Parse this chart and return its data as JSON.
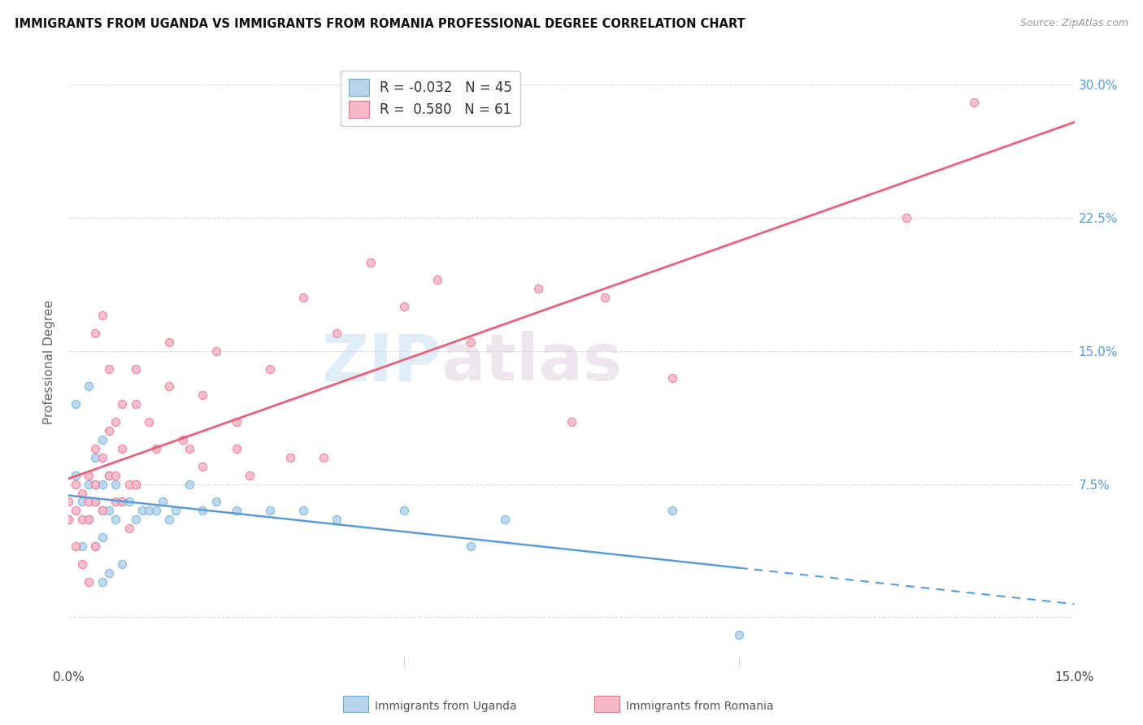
{
  "title": "IMMIGRANTS FROM UGANDA VS IMMIGRANTS FROM ROMANIA PROFESSIONAL DEGREE CORRELATION CHART",
  "source": "Source: ZipAtlas.com",
  "ylabel": "Professional Degree",
  "ytick_labels": [
    "",
    "7.5%",
    "15.0%",
    "22.5%",
    "30.0%"
  ],
  "ytick_values": [
    0.0,
    0.075,
    0.15,
    0.225,
    0.3
  ],
  "xmin": 0.0,
  "xmax": 0.15,
  "ymin": -0.028,
  "ymax": 0.315,
  "watermark": "ZIPatlas",
  "uganda_color": "#b8d4ed",
  "romania_color": "#f7b8c8",
  "uganda_edge_color": "#6aaed6",
  "romania_edge_color": "#e87090",
  "uganda_line_color": "#5b9bd5",
  "romania_line_color": "#e8607a",
  "uganda_R": -0.032,
  "uganda_N": 45,
  "romania_R": 0.58,
  "romania_N": 61,
  "uganda_points_x": [
    0.0,
    0.001,
    0.001,
    0.002,
    0.002,
    0.003,
    0.003,
    0.003,
    0.004,
    0.004,
    0.004,
    0.004,
    0.005,
    0.005,
    0.005,
    0.005,
    0.005,
    0.006,
    0.006,
    0.006,
    0.007,
    0.007,
    0.008,
    0.008,
    0.009,
    0.01,
    0.01,
    0.011,
    0.012,
    0.013,
    0.014,
    0.015,
    0.016,
    0.018,
    0.02,
    0.022,
    0.025,
    0.03,
    0.035,
    0.04,
    0.05,
    0.06,
    0.065,
    0.09,
    0.1
  ],
  "uganda_points_y": [
    0.055,
    0.12,
    0.08,
    0.065,
    0.04,
    0.13,
    0.075,
    0.055,
    0.09,
    0.075,
    0.065,
    0.04,
    0.1,
    0.075,
    0.06,
    0.045,
    0.02,
    0.08,
    0.06,
    0.025,
    0.075,
    0.055,
    0.065,
    0.03,
    0.065,
    0.075,
    0.055,
    0.06,
    0.06,
    0.06,
    0.065,
    0.055,
    0.06,
    0.075,
    0.06,
    0.065,
    0.06,
    0.06,
    0.06,
    0.055,
    0.06,
    0.04,
    0.055,
    0.06,
    -0.01
  ],
  "romania_points_x": [
    0.0,
    0.0,
    0.001,
    0.001,
    0.001,
    0.002,
    0.002,
    0.002,
    0.003,
    0.003,
    0.003,
    0.003,
    0.004,
    0.004,
    0.004,
    0.004,
    0.004,
    0.005,
    0.005,
    0.005,
    0.006,
    0.006,
    0.006,
    0.007,
    0.007,
    0.007,
    0.008,
    0.008,
    0.008,
    0.009,
    0.009,
    0.01,
    0.01,
    0.01,
    0.012,
    0.013,
    0.015,
    0.015,
    0.017,
    0.018,
    0.02,
    0.02,
    0.022,
    0.025,
    0.025,
    0.027,
    0.03,
    0.033,
    0.035,
    0.038,
    0.04,
    0.045,
    0.05,
    0.055,
    0.06,
    0.07,
    0.075,
    0.08,
    0.09,
    0.125,
    0.135
  ],
  "romania_points_y": [
    0.065,
    0.055,
    0.075,
    0.06,
    0.04,
    0.07,
    0.055,
    0.03,
    0.08,
    0.065,
    0.055,
    0.02,
    0.16,
    0.095,
    0.075,
    0.065,
    0.04,
    0.17,
    0.09,
    0.06,
    0.14,
    0.105,
    0.08,
    0.11,
    0.08,
    0.065,
    0.12,
    0.095,
    0.065,
    0.075,
    0.05,
    0.14,
    0.12,
    0.075,
    0.11,
    0.095,
    0.155,
    0.13,
    0.1,
    0.095,
    0.125,
    0.085,
    0.15,
    0.11,
    0.095,
    0.08,
    0.14,
    0.09,
    0.18,
    0.09,
    0.16,
    0.2,
    0.175,
    0.19,
    0.155,
    0.185,
    0.11,
    0.18,
    0.135,
    0.225,
    0.29
  ],
  "grid_color": "#dddddd",
  "background_color": "#ffffff"
}
